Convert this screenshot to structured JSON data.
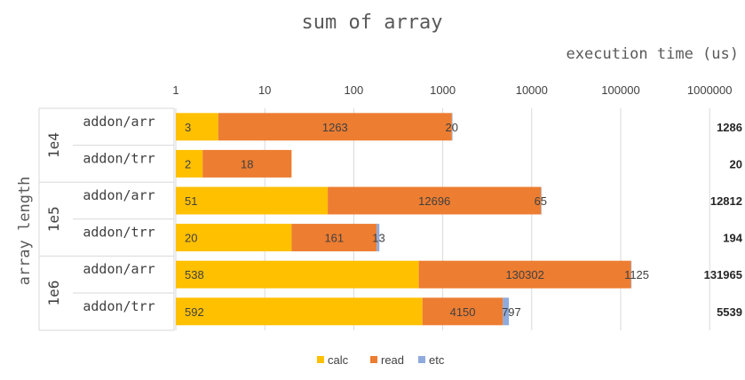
{
  "chart_data": {
    "type": "bar",
    "orientation": "horizontal",
    "stacked": true,
    "title": "sum of array",
    "xlabel": "execution time (us)",
    "ylabel": "array length",
    "x_scale": "log",
    "x_ticks": [
      "1",
      "10",
      "100",
      "1000",
      "10000",
      "100000",
      "1000000"
    ],
    "xlim": [
      1,
      1000000
    ],
    "grid": true,
    "legend_position": "bottom",
    "groups": [
      {
        "label": "1e4",
        "rows": [
          {
            "label": "addon/arr",
            "values": [
              3,
              1263,
              20
            ],
            "total": "1286"
          },
          {
            "label": "addon/trr",
            "values": [
              2,
              18,
              0
            ],
            "total": "20"
          }
        ]
      },
      {
        "label": "1e5",
        "rows": [
          {
            "label": "addon/arr",
            "values": [
              51,
              12696,
              65
            ],
            "total": "12812"
          },
          {
            "label": "addon/trr",
            "values": [
              20,
              161,
              13
            ],
            "total": "194"
          }
        ]
      },
      {
        "label": "1e6",
        "rows": [
          {
            "label": "addon/arr",
            "values": [
              538,
              130302,
              1125
            ],
            "total": "131965"
          },
          {
            "label": "addon/trr",
            "values": [
              592,
              4150,
              797
            ],
            "total": "5539"
          }
        ]
      }
    ],
    "series": [
      {
        "name": "calc",
        "color": "#FFC000"
      },
      {
        "name": "read",
        "color": "#ED7D31"
      },
      {
        "name": "etc",
        "color": "#8FAADC"
      }
    ]
  }
}
